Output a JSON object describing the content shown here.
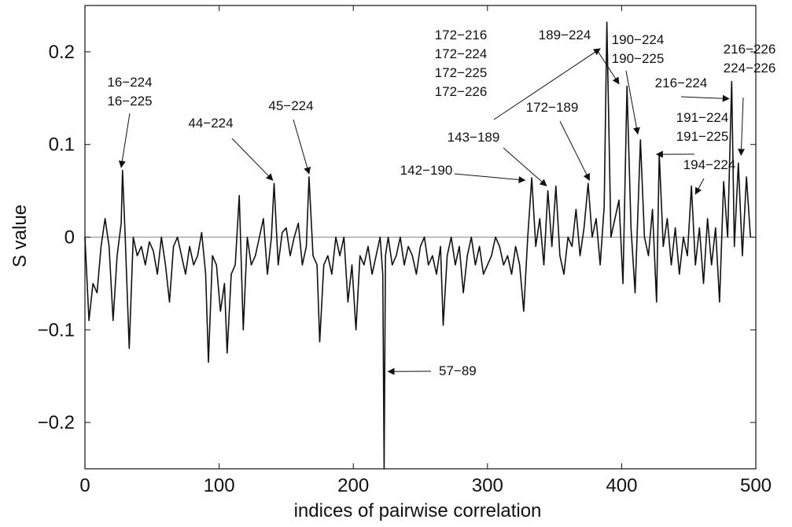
{
  "chart_data": {
    "type": "line",
    "title": "",
    "xlabel": "indices of pairwise correlation",
    "ylabel": "S value",
    "xlim": [
      0,
      500
    ],
    "ylim": [
      -0.25,
      0.25
    ],
    "xticks": [
      0,
      100,
      200,
      300,
      400,
      500
    ],
    "yticks": [
      -0.2,
      -0.1,
      0,
      0.1,
      0.2
    ],
    "ytick_labels": [
      "−0.2",
      "−0.1",
      "0",
      "0.1",
      "0.2"
    ],
    "zero_line": true,
    "grid": false,
    "legend": "none",
    "series": [
      {
        "x": [
          0,
          3,
          6,
          9,
          12,
          15,
          18,
          21,
          24,
          27,
          28,
          30,
          33,
          36,
          39,
          42,
          45,
          48,
          51,
          54,
          57,
          60,
          63,
          66,
          69,
          72,
          75,
          78,
          81,
          84,
          87,
          90,
          92,
          95,
          98,
          101,
          104,
          106,
          109,
          112,
          115,
          118,
          121,
          124,
          127,
          130,
          133,
          136,
          139,
          141,
          144,
          147,
          150,
          153,
          156,
          159,
          162,
          165,
          167,
          170,
          173,
          175,
          178,
          181,
          184,
          187,
          190,
          193,
          196,
          199,
          202,
          205,
          208,
          211,
          214,
          217,
          220,
          222,
          223,
          224,
          226,
          229,
          232,
          235,
          238,
          241,
          244,
          247,
          250,
          253,
          256,
          259,
          262,
          265,
          267,
          270,
          273,
          276,
          279,
          282,
          285,
          288,
          291,
          294,
          297,
          300,
          303,
          306,
          309,
          312,
          315,
          318,
          321,
          324,
          327,
          330,
          333,
          336,
          339,
          342,
          345,
          348,
          351,
          354,
          357,
          360,
          363,
          366,
          369,
          372,
          375,
          378,
          381,
          384,
          387,
          389,
          392,
          395,
          398,
          401,
          404,
          407,
          410,
          414,
          417,
          420,
          423,
          426,
          428,
          431,
          434,
          437,
          440,
          443,
          446,
          449,
          452,
          455,
          458,
          461,
          464,
          467,
          470,
          473,
          476,
          479,
          482,
          484,
          487,
          490,
          493,
          496
        ],
        "y": [
          0.0,
          -0.09,
          -0.05,
          -0.06,
          -0.01,
          0.02,
          -0.01,
          -0.09,
          -0.02,
          0.015,
          0.072,
          0.0,
          -0.12,
          0.0,
          -0.02,
          -0.01,
          -0.03,
          -0.005,
          -0.015,
          -0.04,
          0.0,
          -0.03,
          -0.07,
          -0.01,
          0.0,
          -0.02,
          -0.04,
          -0.01,
          -0.03,
          -0.02,
          0.005,
          -0.04,
          -0.135,
          -0.02,
          -0.03,
          -0.08,
          -0.05,
          -0.125,
          -0.04,
          -0.03,
          0.045,
          -0.1,
          0.0,
          -0.03,
          -0.02,
          0.0,
          0.02,
          -0.04,
          0.0,
          0.058,
          -0.03,
          0.005,
          0.01,
          -0.02,
          0.0,
          0.015,
          -0.03,
          -0.01,
          0.065,
          -0.02,
          -0.03,
          -0.113,
          -0.03,
          -0.02,
          -0.04,
          0.0,
          -0.02,
          0.0,
          -0.07,
          -0.03,
          -0.1,
          -0.02,
          -0.03,
          -0.01,
          -0.04,
          -0.02,
          0.0,
          -0.04,
          -0.25,
          -0.02,
          0.0,
          -0.03,
          -0.02,
          0.0,
          -0.03,
          -0.01,
          -0.02,
          -0.04,
          -0.01,
          0.0,
          -0.03,
          -0.02,
          -0.04,
          -0.01,
          -0.095,
          -0.02,
          0.0,
          -0.03,
          -0.01,
          -0.06,
          -0.02,
          0.0,
          -0.03,
          -0.01,
          -0.04,
          -0.03,
          -0.02,
          0.0,
          -0.01,
          -0.03,
          -0.02,
          -0.04,
          -0.01,
          -0.03,
          -0.08,
          0.0,
          0.064,
          -0.01,
          0.02,
          -0.03,
          0.05,
          -0.01,
          0.055,
          -0.02,
          -0.04,
          0.0,
          -0.01,
          0.03,
          -0.02,
          0.01,
          0.058,
          0.0,
          0.02,
          -0.03,
          0.033,
          0.232,
          0.0,
          0.02,
          0.04,
          -0.05,
          0.163,
          0.01,
          -0.06,
          0.105,
          0.0,
          -0.02,
          0.03,
          -0.07,
          0.09,
          -0.01,
          0.02,
          -0.03,
          0.01,
          -0.04,
          0.0,
          -0.02,
          0.055,
          -0.03,
          0.01,
          -0.05,
          0.02,
          -0.03,
          0.01,
          -0.07,
          0.06,
          0.0,
          0.168,
          -0.01,
          0.08,
          -0.02,
          0.065,
          0.0
        ]
      }
    ],
    "annotations": [
      {
        "lines": [
          "16−224",
          "16−225"
        ],
        "x": 27,
        "y": 0.072
      },
      {
        "lines": [
          "44−224"
        ],
        "x": 140,
        "y": 0.058
      },
      {
        "lines": [
          "45−224"
        ],
        "x": 167,
        "y": 0.065
      },
      {
        "lines": [
          "57−89"
        ],
        "x": 223,
        "y": -0.145
      },
      {
        "lines": [
          "142−190"
        ],
        "x": 328,
        "y": 0.058
      },
      {
        "lines": [
          "143−189"
        ],
        "x": 344,
        "y": 0.052
      },
      {
        "lines": [
          "172−189"
        ],
        "x": 376,
        "y": 0.058
      },
      {
        "lines": [
          "172−216",
          "172−224",
          "172−225",
          "172−226"
        ],
        "x": 384,
        "y": 0.2
      },
      {
        "lines": [
          "189−224"
        ],
        "x": 398,
        "y": 0.162
      },
      {
        "lines": [
          "190−224",
          "190−225"
        ],
        "x": 412,
        "y": 0.108
      },
      {
        "lines": [
          "191−224",
          "191−225"
        ],
        "x": 426,
        "y": 0.086
      },
      {
        "lines": [
          "194−224"
        ],
        "x": 455,
        "y": 0.043
      },
      {
        "lines": [
          "216−224"
        ],
        "x": 480,
        "y": 0.146
      },
      {
        "lines": [
          "216−226",
          "224−226"
        ],
        "x": 489,
        "y": 0.085
      }
    ]
  }
}
